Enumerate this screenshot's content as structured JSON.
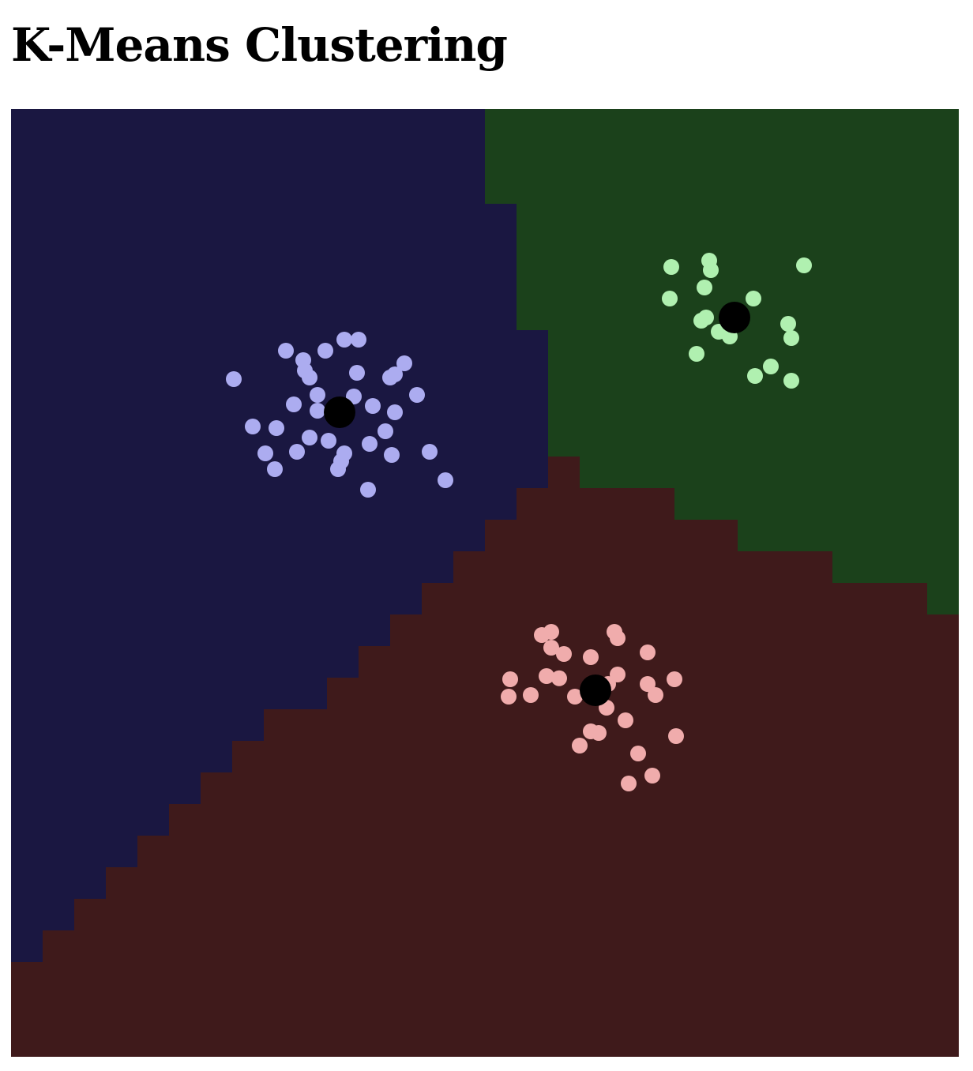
{
  "title": "K-Means Clustering",
  "chart_data": {
    "type": "scatter",
    "title": "K-Means Clustering",
    "xlabel": "",
    "ylabel": "",
    "xlim": [
      0,
      30
    ],
    "ylim": [
      0,
      30
    ],
    "grid": false,
    "region_colors": [
      "#1a1741",
      "#1b411b",
      "#3f1a1b"
    ],
    "point_colors": [
      "#acacf0",
      "#b0f0b0",
      "#f0acac"
    ],
    "centroid_color": "#000000",
    "centroids": [
      {
        "x": 10.4,
        "y": 20.4
      },
      {
        "x": 22.9,
        "y": 23.4
      },
      {
        "x": 18.5,
        "y": 11.6
      }
    ],
    "series": [
      {
        "points": [
          [
            10.55,
            22.7
          ],
          [
            11.0,
            22.7
          ],
          [
            8.7,
            22.35
          ],
          [
            9.95,
            22.35
          ],
          [
            9.25,
            22.05
          ],
          [
            12.45,
            21.95
          ],
          [
            9.3,
            21.72
          ],
          [
            10.95,
            21.65
          ],
          [
            12.15,
            21.6
          ],
          [
            9.45,
            21.5
          ],
          [
            12.0,
            21.5
          ],
          [
            7.05,
            21.45
          ],
          [
            9.7,
            20.95
          ],
          [
            10.85,
            20.9
          ],
          [
            12.85,
            20.95
          ],
          [
            8.95,
            20.65
          ],
          [
            11.45,
            20.6
          ],
          [
            9.7,
            20.45
          ],
          [
            12.15,
            20.4
          ],
          [
            7.65,
            19.95
          ],
          [
            8.4,
            19.9
          ],
          [
            11.85,
            19.8
          ],
          [
            9.45,
            19.6
          ],
          [
            10.05,
            19.5
          ],
          [
            11.35,
            19.4
          ],
          [
            8.05,
            19.1
          ],
          [
            9.05,
            19.15
          ],
          [
            10.55,
            19.1
          ],
          [
            12.05,
            19.05
          ],
          [
            13.25,
            19.15
          ],
          [
            10.45,
            18.85
          ],
          [
            8.35,
            18.6
          ],
          [
            10.35,
            18.6
          ],
          [
            13.75,
            18.25
          ],
          [
            11.3,
            17.95
          ]
        ]
      },
      {
        "points": [
          [
            22.1,
            25.2
          ],
          [
            20.9,
            25.0
          ],
          [
            22.15,
            24.9
          ],
          [
            25.1,
            25.05
          ],
          [
            21.95,
            24.35
          ],
          [
            20.85,
            24.0
          ],
          [
            23.5,
            24.0
          ],
          [
            21.85,
            23.3
          ],
          [
            22.0,
            23.4
          ],
          [
            24.6,
            23.2
          ],
          [
            22.4,
            22.95
          ],
          [
            22.75,
            22.8
          ],
          [
            24.7,
            22.75
          ],
          [
            21.7,
            22.25
          ],
          [
            24.05,
            21.85
          ],
          [
            23.55,
            21.55
          ],
          [
            24.7,
            21.4
          ]
        ]
      },
      {
        "points": [
          [
            17.1,
            13.45
          ],
          [
            16.8,
            13.35
          ],
          [
            19.1,
            13.45
          ],
          [
            19.2,
            13.25
          ],
          [
            17.1,
            12.95
          ],
          [
            17.5,
            12.75
          ],
          [
            18.35,
            12.65
          ],
          [
            20.15,
            12.8
          ],
          [
            15.8,
            11.95
          ],
          [
            16.95,
            12.05
          ],
          [
            17.35,
            11.98
          ],
          [
            19.2,
            12.1
          ],
          [
            21.0,
            11.95
          ],
          [
            20.15,
            11.8
          ],
          [
            15.75,
            11.4
          ],
          [
            16.45,
            11.45
          ],
          [
            17.85,
            11.4
          ],
          [
            18.9,
            11.8
          ],
          [
            20.4,
            11.45
          ],
          [
            18.85,
            11.05
          ],
          [
            19.45,
            10.65
          ],
          [
            18.35,
            10.3
          ],
          [
            18.6,
            10.25
          ],
          [
            21.05,
            10.15
          ],
          [
            18.0,
            9.85
          ],
          [
            19.85,
            9.6
          ],
          [
            20.3,
            8.9
          ],
          [
            19.55,
            8.65
          ]
        ]
      }
    ]
  }
}
